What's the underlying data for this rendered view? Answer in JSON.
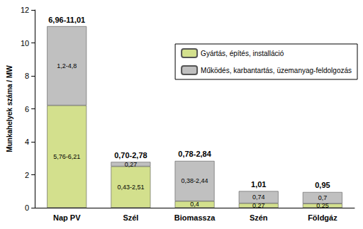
{
  "chart_data": {
    "type": "bar",
    "stacked": true,
    "data_labels": true,
    "legend": "upper right",
    "grid": false,
    "y_label": "Munkahelyek száma / MW",
    "categories": [
      "Nap PV",
      "Szél",
      "Biomassza",
      "Szén",
      "Földgáz"
    ],
    "series": [
      {
        "name": "Gyártás, építés, installáció",
        "color": "#d3e08d",
        "values": [
          6.21,
          2.51,
          0.4,
          0.27,
          0.25
        ],
        "value_labels": [
          "5,76-6,21",
          "0,43-2,51",
          "0,4",
          "0,27",
          "0,25"
        ]
      },
      {
        "name": "Működés, karbantartás, üzemanyag-feldolgozás",
        "color": "#c0c0c0",
        "values": [
          4.8,
          0.27,
          2.44,
          0.74,
          0.7
        ],
        "value_labels": [
          "1,2-4,8",
          "0,27",
          "0,38-2,44",
          "0,74",
          "0,7"
        ]
      }
    ],
    "total_labels": [
      "6,96-11,01",
      "0,70-2,78",
      "0,78-2,84",
      "1,01",
      "0,95"
    ],
    "ylim": [
      0,
      12
    ],
    "yticks": [
      0,
      2,
      4,
      6,
      8,
      10,
      12
    ]
  }
}
